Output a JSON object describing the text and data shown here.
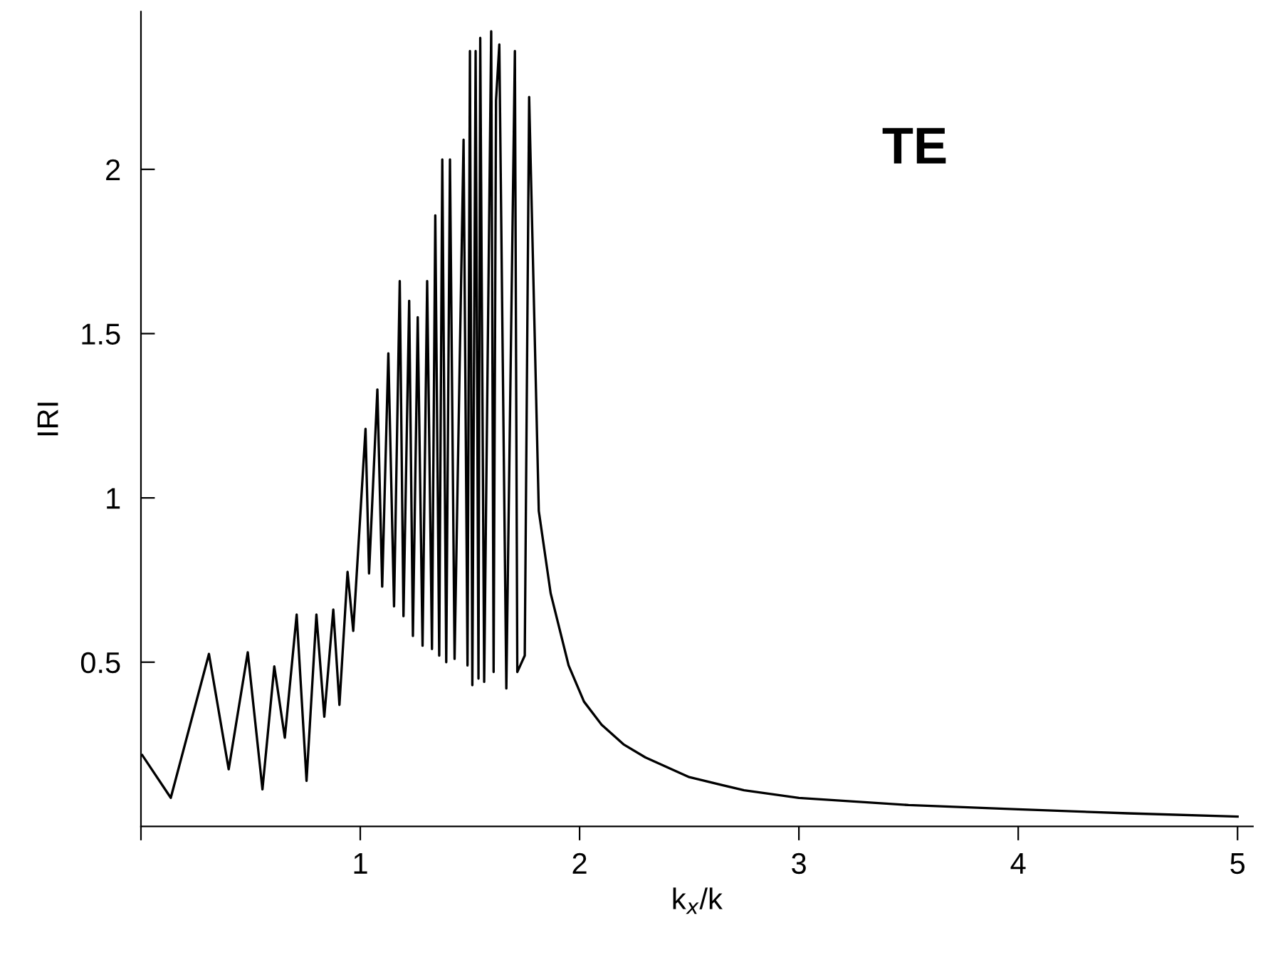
{
  "chart_data": {
    "type": "line",
    "xlabel": "k$_{x}$/k",
    "ylabel": "IRI",
    "annotations": [
      "TE"
    ],
    "x": [
      0.006,
      0.136,
      0.31,
      0.4,
      0.487,
      0.554,
      0.608,
      0.656,
      0.71,
      0.755,
      0.8,
      0.836,
      0.877,
      0.905,
      0.942,
      0.968,
      1.024,
      1.04,
      1.078,
      1.1,
      1.128,
      1.154,
      1.18,
      1.197,
      1.223,
      1.24,
      1.262,
      1.284,
      1.305,
      1.327,
      1.342,
      1.36,
      1.374,
      1.392,
      1.409,
      1.43,
      1.471,
      1.489,
      1.5,
      1.511,
      1.526,
      1.539,
      1.547,
      1.565,
      1.597,
      1.608,
      1.619,
      1.634,
      1.666,
      1.705,
      1.716,
      1.75,
      1.77,
      1.814,
      1.868,
      1.95,
      2.02,
      2.1,
      2.2,
      2.3,
      2.5,
      2.75,
      3.0,
      3.5,
      4.0,
      4.5,
      5.0
    ],
    "series": [
      {
        "color": "#000000",
        "values": [
          0.217,
          0.087,
          0.525,
          0.174,
          0.53,
          0.113,
          0.487,
          0.27,
          0.645,
          0.139,
          0.645,
          0.334,
          0.66,
          0.37,
          0.775,
          0.595,
          1.21,
          0.77,
          1.33,
          0.73,
          1.44,
          0.67,
          1.66,
          0.64,
          1.6,
          0.58,
          1.55,
          0.55,
          1.66,
          0.54,
          1.86,
          0.52,
          2.03,
          0.5,
          2.03,
          0.51,
          2.09,
          0.49,
          2.36,
          0.43,
          2.36,
          0.45,
          2.4,
          0.44,
          2.42,
          0.47,
          2.21,
          2.38,
          0.42,
          2.36,
          0.47,
          0.52,
          2.22,
          0.96,
          0.71,
          0.49,
          0.38,
          0.31,
          0.25,
          0.21,
          0.15,
          0.11,
          0.087,
          0.065,
          0.052,
          0.04,
          0.03
        ]
      }
    ],
    "xlim": [
      0,
      5.07
    ],
    "ylim": [
      0,
      2.48
    ],
    "xticks": [
      {
        "value": 0,
        "label": null
      },
      1,
      2,
      3,
      4,
      5
    ],
    "yticks": [
      0.5,
      1,
      1.5,
      2
    ],
    "grid": false,
    "line_style": "solid",
    "marker": "none"
  }
}
